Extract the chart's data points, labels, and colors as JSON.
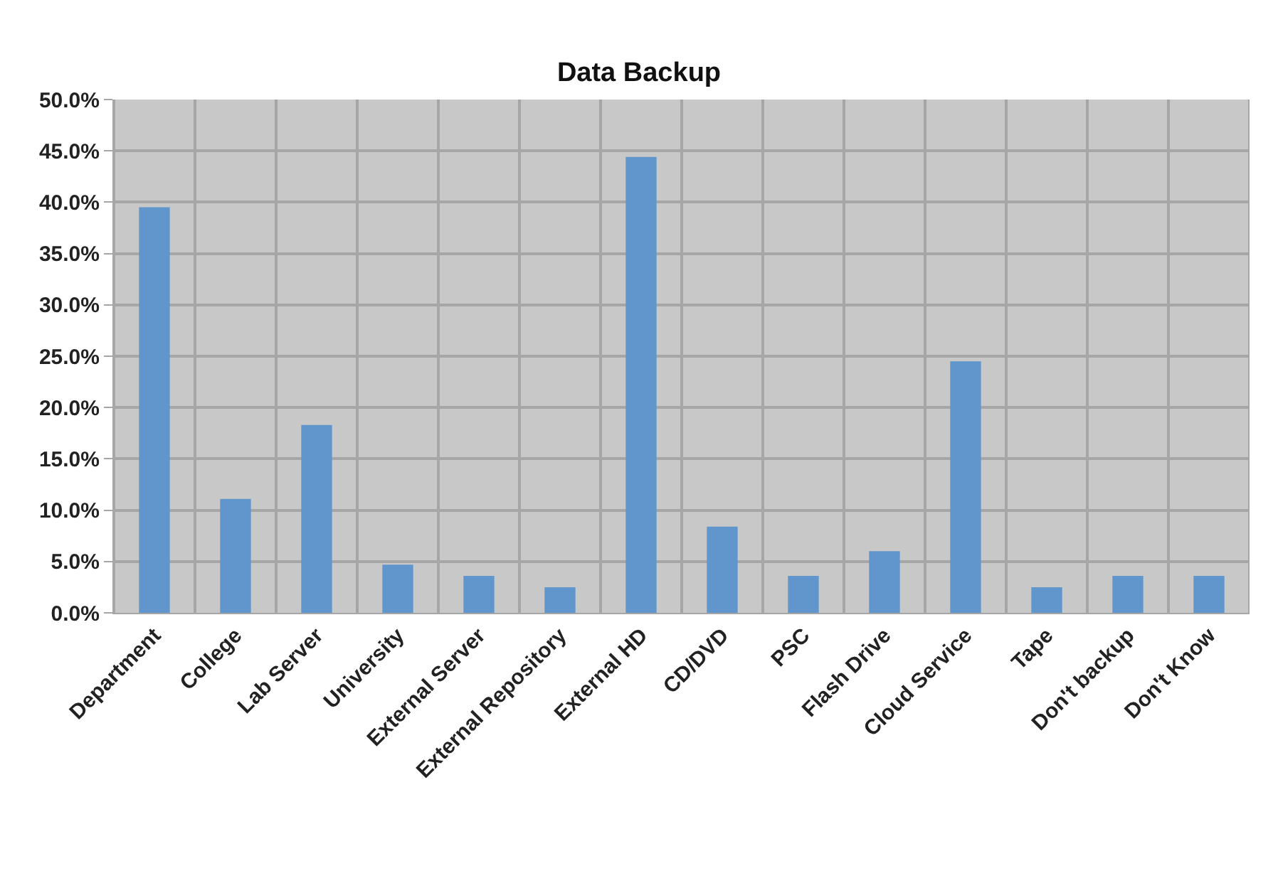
{
  "chart_data": {
    "type": "bar",
    "title": "Data Backup",
    "categories": [
      "Department",
      "College",
      "Lab Server",
      "University",
      "External Server",
      "External Repository",
      "External HD",
      "CD/DVD",
      "PSC",
      "Flash Drive",
      "Cloud Service",
      "Tape",
      "Don't backup",
      "Don't Know"
    ],
    "values": [
      39.5,
      11.1,
      18.3,
      4.7,
      3.6,
      2.5,
      44.4,
      8.4,
      3.6,
      6.0,
      24.5,
      2.5,
      3.6,
      3.6
    ],
    "color": "#6096cb",
    "ylim": [
      0,
      50
    ],
    "yticks": [
      {
        "value": 0,
        "label": "0.0%"
      },
      {
        "value": 5,
        "label": "5.0%"
      },
      {
        "value": 10,
        "label": "10.0%"
      },
      {
        "value": 15,
        "label": "15.0%"
      },
      {
        "value": 20,
        "label": "20.0%"
      },
      {
        "value": 25,
        "label": "25.0%"
      },
      {
        "value": 30,
        "label": "30.0%"
      },
      {
        "value": 35,
        "label": "35.0%"
      },
      {
        "value": 40,
        "label": "40.0%"
      },
      {
        "value": 45,
        "label": "45.0%"
      },
      {
        "value": 50,
        "label": "50.0%"
      }
    ],
    "grid": true
  }
}
